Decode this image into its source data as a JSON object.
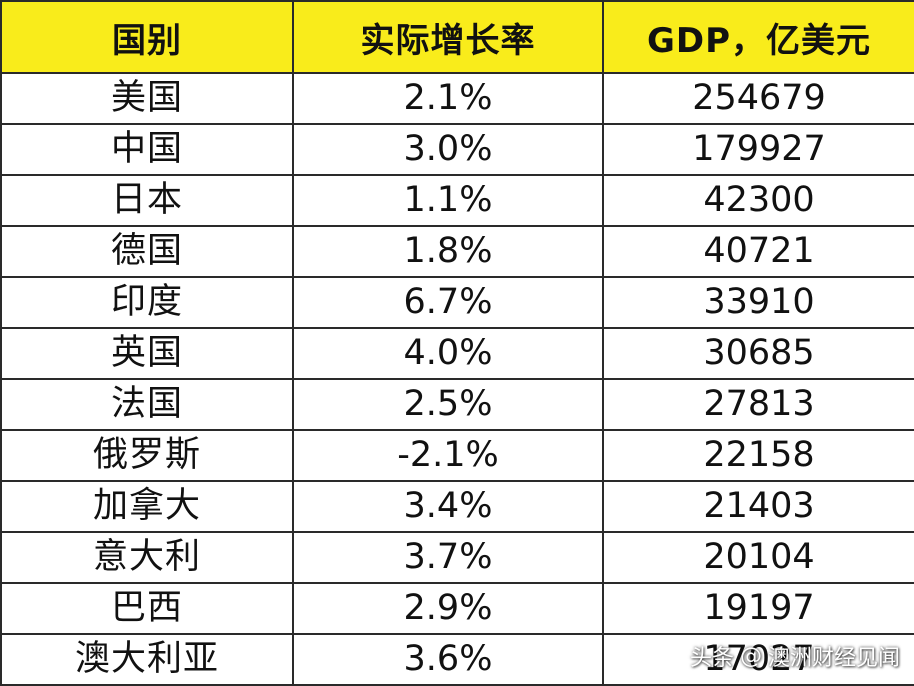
{
  "chart_data": {
    "type": "table",
    "columns": [
      "国别",
      "实际增长率",
      "GDP，亿美元"
    ],
    "rows": [
      [
        "美国",
        "2.1%",
        "254679"
      ],
      [
        "中国",
        "3.0%",
        "179927"
      ],
      [
        "日本",
        "1.1%",
        "42300"
      ],
      [
        "德国",
        "1.8%",
        "40721"
      ],
      [
        "印度",
        "6.7%",
        "33910"
      ],
      [
        "英国",
        "4.0%",
        "30685"
      ],
      [
        "法国",
        "2.5%",
        "27813"
      ],
      [
        "俄罗斯",
        "-2.1%",
        "22158"
      ],
      [
        "加拿大",
        "3.4%",
        "21403"
      ],
      [
        "意大利",
        "3.7%",
        "20104"
      ],
      [
        "巴西",
        "2.9%",
        "19197"
      ],
      [
        "澳大利亚",
        "3.6%",
        "17027"
      ]
    ],
    "header_color": "#f9ec1b",
    "border_color": "#2a2a2a"
  },
  "watermark": {
    "prefix": "头条",
    "at_symbol": "@",
    "account": "澳洲财经见闻"
  }
}
